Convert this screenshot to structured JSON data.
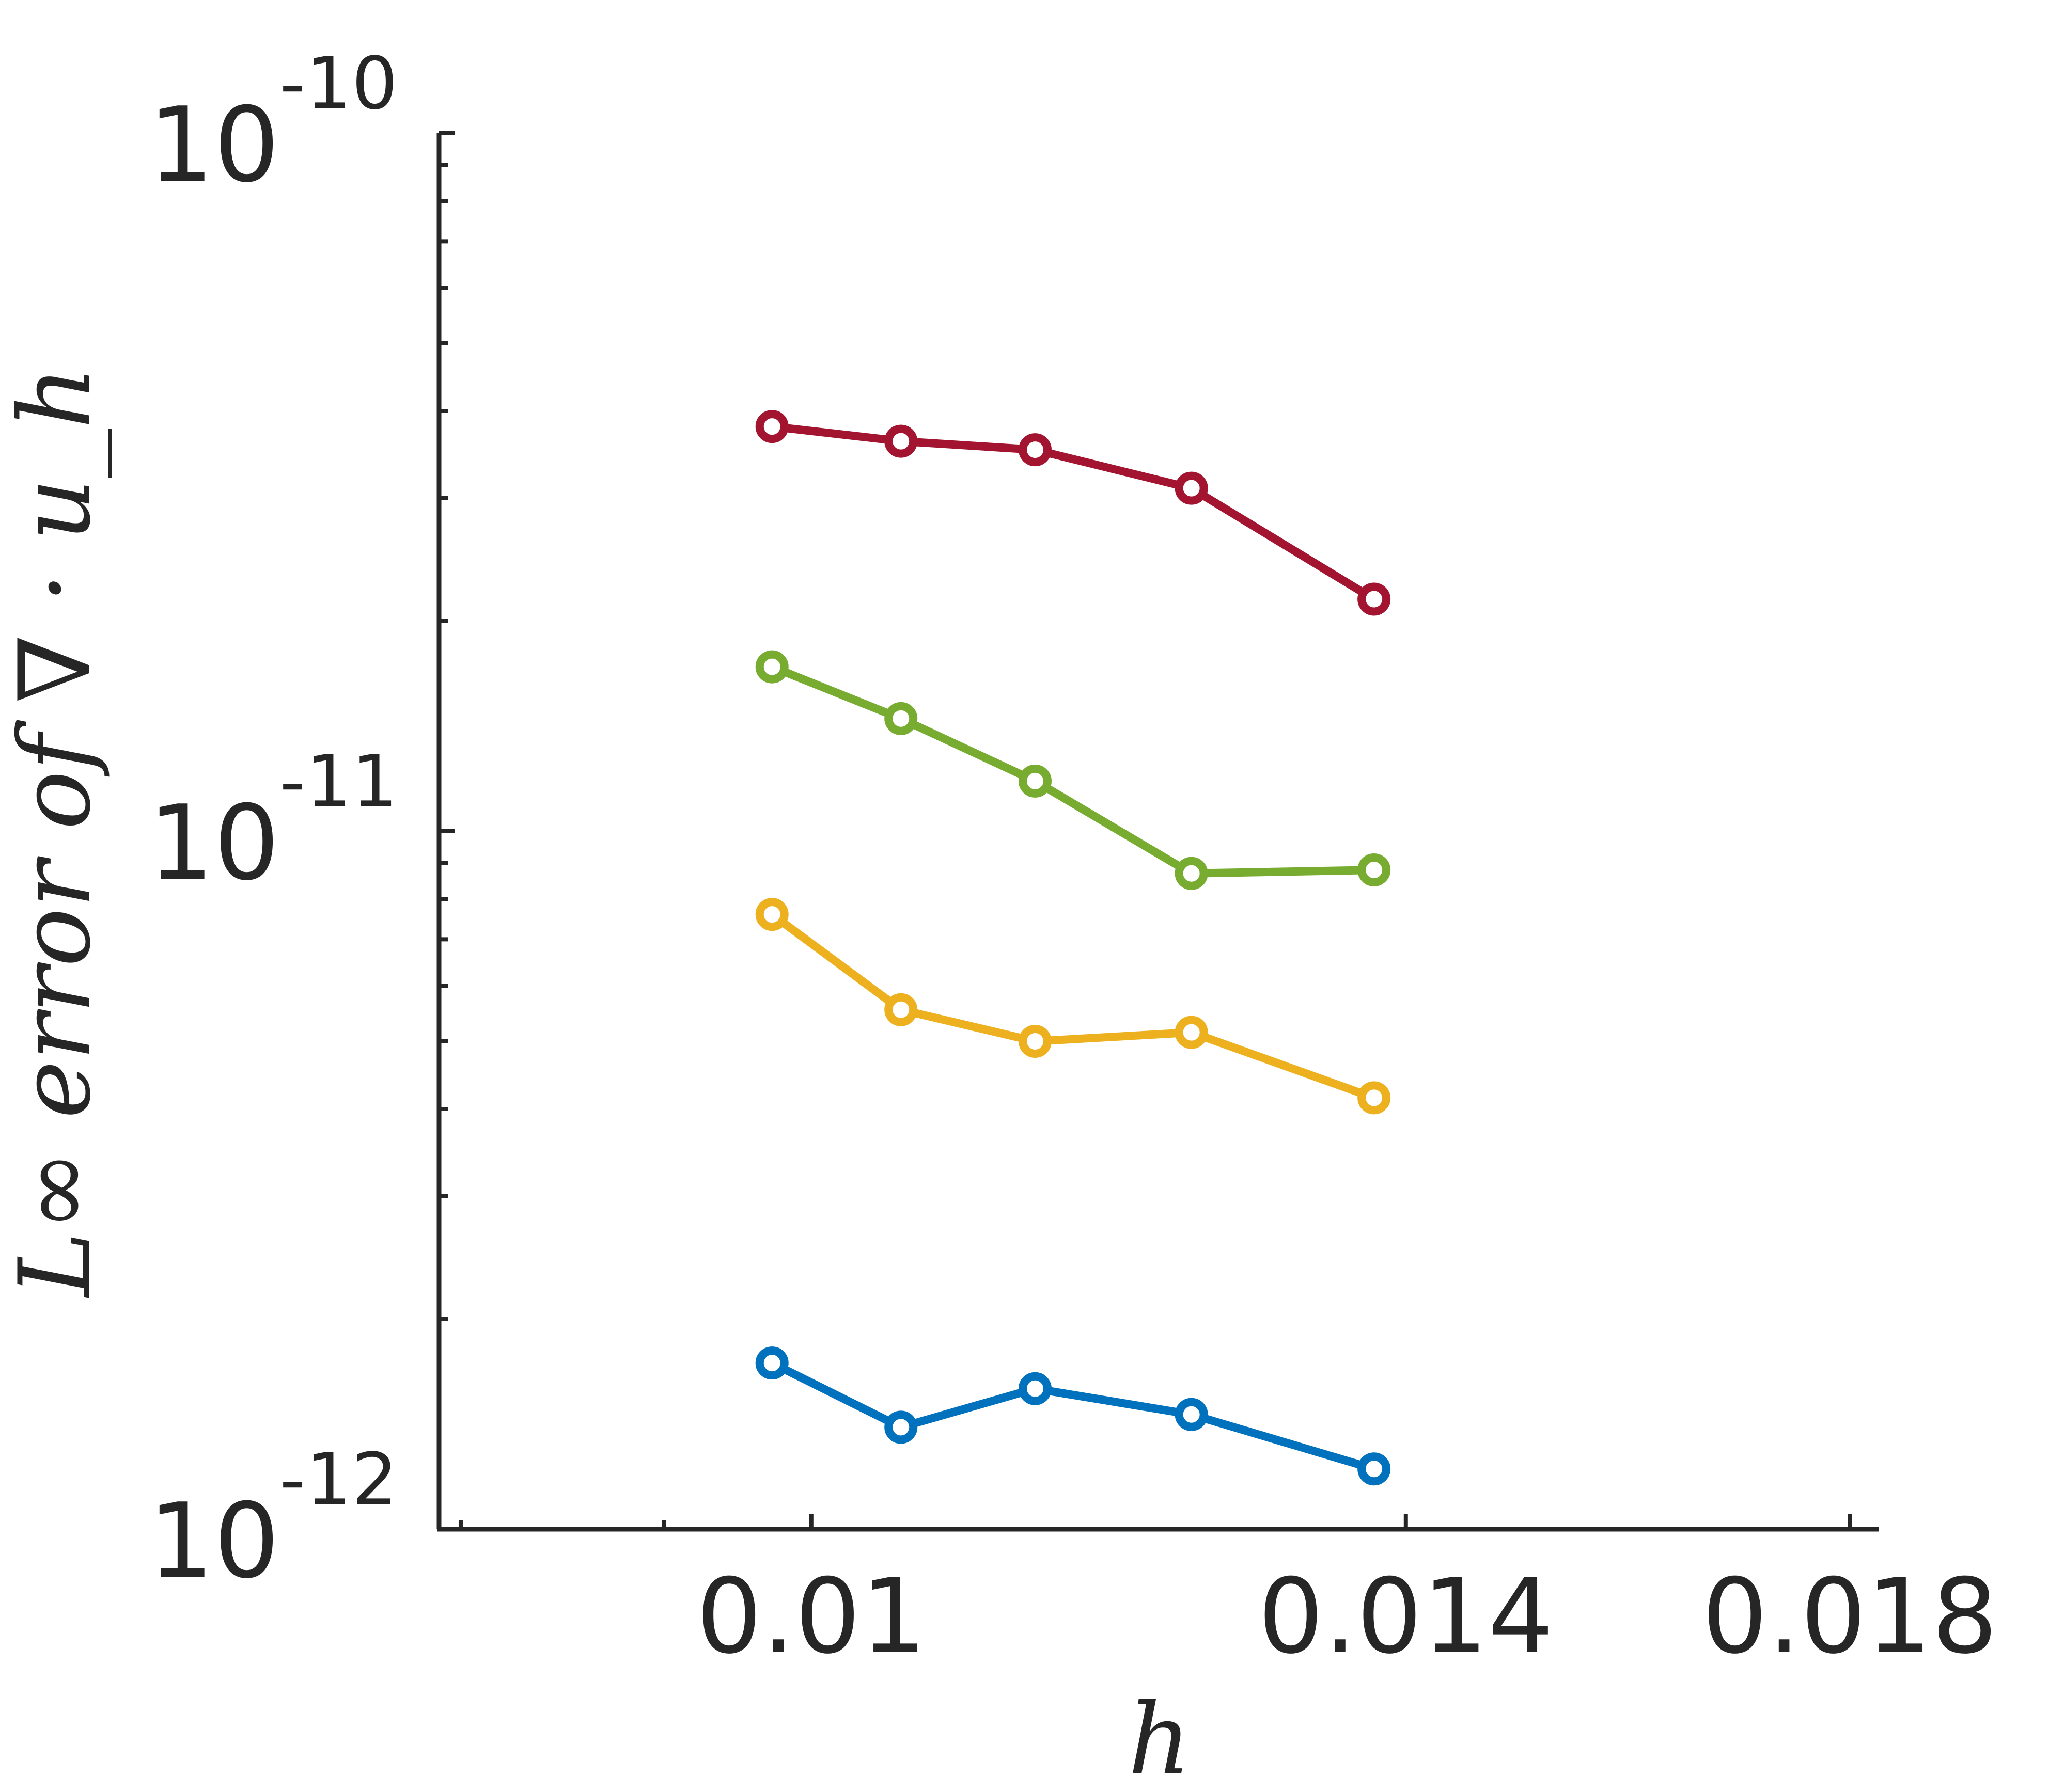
{
  "chart_data": {
    "type": "line",
    "xlabel": "h",
    "ylabel": "L∞ error of ∇ · u_h",
    "xscale": "log",
    "yscale": "log",
    "xlim": [
      0.0081,
      0.0183
    ],
    "ylim": [
      1e-12,
      1e-10
    ],
    "grid": false,
    "legend": "none",
    "x": [
      0.00978,
      0.01052,
      0.01135,
      0.0124,
      0.01375
    ],
    "xticks": [
      {
        "value": 0.01,
        "label": "0.01"
      },
      {
        "value": 0.014,
        "label": "0.014"
      },
      {
        "value": 0.018,
        "label": "0.018"
      }
    ],
    "xminor_ticks": [
      0.0082,
      0.0092
    ],
    "yticks": [
      {
        "value": 1e-10,
        "base": "10",
        "exp": "-10"
      },
      {
        "value": 1e-11,
        "base": "10",
        "exp": "-11"
      },
      {
        "value": 1e-12,
        "base": "10",
        "exp": "-12"
      }
    ],
    "marker": "open-circle",
    "series": [
      {
        "color": "#A2142F",
        "values": [
          3.8e-11,
          3.62e-11,
          3.52e-11,
          3.1e-11,
          2.15e-11
        ]
      },
      {
        "color": "#77AC30",
        "values": [
          1.72e-11,
          1.45e-11,
          1.18e-11,
          8.7e-12,
          8.8e-12
        ]
      },
      {
        "color": "#EDB120",
        "values": [
          7.6e-12,
          5.55e-12,
          5e-12,
          5.15e-12,
          4.15e-12
        ]
      },
      {
        "color": "#0072BD",
        "values": [
          1.73e-12,
          1.4e-12,
          1.59e-12,
          1.46e-12,
          1.22e-12
        ]
      }
    ]
  }
}
